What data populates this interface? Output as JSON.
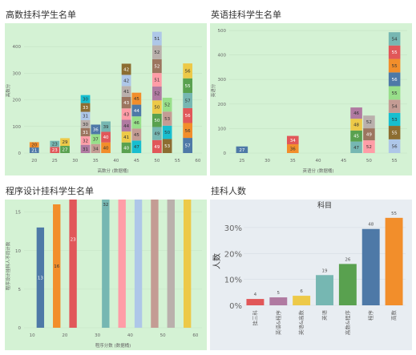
{
  "dashboard": {
    "panel_titles": [
      "高数挂科学生名单",
      "英语挂科学生名单",
      "程序设计挂科学生名单",
      "挂科人数"
    ],
    "colors": {
      "panel_bg": "#d4f2d4",
      "summary_bg": "#e8edf2",
      "palette": [
        "#4e79a7",
        "#f28e2b",
        "#e15759",
        "#76b7b2",
        "#59a14f",
        "#edc948",
        "#b07aa1",
        "#ff9da7",
        "#9c755f",
        "#bab0ac"
      ],
      "stack_palette": [
        "#4e79a7",
        "#f28e2b",
        "#e15759",
        "#76b7b2",
        "#59a14f",
        "#edc948",
        "#b07aa1",
        "#ff9da7",
        "#9c755f",
        "#bab0ac",
        "#aec7e8",
        "#8c6d31",
        "#17becf",
        "#c49c94",
        "#98df8a"
      ]
    }
  },
  "chart_data": [
    {
      "type": "bar",
      "title": "",
      "xlabel": "高数分 (数据桶)",
      "ylabel": "高数分",
      "xlim": [
        17.5,
        61
      ],
      "ylim": [
        0,
        470
      ],
      "xticks": [
        20,
        25,
        30,
        35,
        40,
        45,
        50,
        55,
        60
      ],
      "yticks": [
        0,
        100,
        200,
        300,
        400
      ],
      "bins": [
        {
          "x": 20,
          "values": [
            21,
            20
          ]
        },
        {
          "x": 25,
          "values": [
            23,
            23
          ]
        },
        {
          "x": 27.5,
          "values": [
            27,
            29
          ]
        },
        {
          "x": 32.5,
          "values": [
            31,
            32,
            31,
            30,
            31,
            33,
            30
          ]
        },
        {
          "x": 35,
          "values": [
            34,
            37,
            36
          ]
        },
        {
          "x": 37.5,
          "values": [
            40,
            40,
            39
          ]
        },
        {
          "x": 42.5,
          "values": [
            40,
            41,
            44,
            43,
            43,
            41,
            42,
            42
          ]
        },
        {
          "x": 45,
          "values": [
            47,
            45,
            46,
            44,
            45
          ]
        },
        {
          "x": 50,
          "values": [
            49,
            49,
            50,
            50,
            52,
            51,
            52,
            52,
            51
          ]
        },
        {
          "x": 52.5,
          "values": [
            53,
            50,
            53,
            52
          ]
        },
        {
          "x": 57.5,
          "values": [
            57,
            56,
            56,
            57,
            55,
            56
          ]
        }
      ]
    },
    {
      "type": "bar",
      "title": "",
      "xlabel": "英语分 (数据桶)",
      "ylabel": "英语分",
      "xlim": [
        22.5,
        57.5
      ],
      "ylim": [
        0,
        510
      ],
      "xticks": [
        25,
        30,
        35,
        40,
        45,
        50,
        55
      ],
      "yticks": [
        0,
        100,
        200,
        300,
        400,
        500
      ],
      "bins": [
        {
          "x": 25,
          "values": [
            27
          ]
        },
        {
          "x": 35,
          "values": [
            36,
            34
          ]
        },
        {
          "x": 47.5,
          "values": [
            47,
            45,
            48,
            46
          ]
        },
        {
          "x": 50,
          "values": [
            52,
            49,
            52
          ]
        },
        {
          "x": 55,
          "values": [
            56,
            55,
            53,
            54,
            55,
            56,
            55,
            55,
            54
          ]
        }
      ]
    },
    {
      "type": "bar",
      "title": "",
      "xlabel": "程序分数 (数据桶)",
      "ylabel": "程序设计挂科人不同计数",
      "xlim": [
        7.5,
        62
      ],
      "ylim": [
        0,
        16
      ],
      "xticks": [
        10,
        20,
        30,
        40,
        50,
        60
      ],
      "yticks": [
        0,
        5,
        10,
        15
      ],
      "bins": [
        {
          "x": 12.5,
          "values": [
            13
          ]
        },
        {
          "x": 17.5,
          "values": [
            16
          ]
        },
        {
          "x": 22.5,
          "values": [
            23
          ]
        },
        {
          "x": 32.5,
          "values": [
            32,
            31,
            31,
            32
          ]
        },
        {
          "x": 37.5,
          "values": [
            35,
            36,
            36
          ]
        },
        {
          "x": 42.5,
          "values": [
            38,
            41,
            41
          ]
        },
        {
          "x": 47.5,
          "values": [
            42,
            46,
            48,
            46,
            44,
            46,
            44,
            47,
            48,
            50,
            44
          ]
        },
        {
          "x": 52.5,
          "values": [
            48,
            49,
            54,
            55,
            53,
            51,
            54,
            53,
            52,
            55,
            50
          ]
        },
        {
          "x": 57.5,
          "values": [
            57
          ]
        }
      ]
    },
    {
      "type": "bar",
      "title": "科目",
      "xlabel": "",
      "ylabel": "人数",
      "ylim": [
        0,
        0.34
      ],
      "yticks": [
        0,
        0.1,
        0.2,
        0.3
      ],
      "ytick_labels": [
        "0%",
        "10%",
        "20%",
        "30%"
      ],
      "categories": [
        "挂三科",
        "英语&程序",
        "英语&高数",
        "英语",
        "高数&程序",
        "程序",
        "高数"
      ],
      "values": [
        4,
        5,
        6,
        19,
        26,
        48,
        55
      ],
      "shares": [
        0.0245,
        0.0307,
        0.0368,
        0.1166,
        0.1595,
        0.2945,
        0.3374
      ],
      "colors": [
        "#e15759",
        "#b07aa1",
        "#edc948",
        "#76b7b2",
        "#59a14f",
        "#4e79a7",
        "#f28e2b"
      ]
    }
  ]
}
